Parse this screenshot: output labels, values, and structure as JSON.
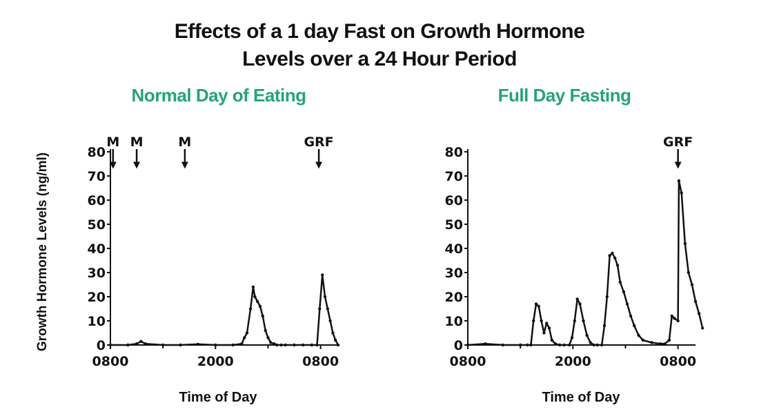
{
  "title_line1": "Effects of a 1 day Fast on Growth Hormone",
  "title_line2": "Levels over a 24 Hour Period",
  "colors": {
    "accent": "#23a47a",
    "ink": "#111111"
  },
  "chart_data": [
    {
      "type": "line",
      "title": "Normal Day of Eating",
      "xlabel": "Time of Day",
      "ylabel": "Growth Hormone Levels (ng/ml)",
      "ylim": [
        0,
        80
      ],
      "yticks": [
        0,
        10,
        20,
        30,
        40,
        50,
        60,
        70,
        80
      ],
      "xlim": [
        0,
        26
      ],
      "xticks": [
        {
          "x": 0,
          "label": "0800"
        },
        {
          "x": 12,
          "label": "2000"
        },
        {
          "x": 24,
          "label": "0800"
        }
      ],
      "markers": [
        {
          "label": "M",
          "x": 0.3,
          "y": 73
        },
        {
          "label": "M",
          "x": 3.0,
          "y": 73
        },
        {
          "label": "M",
          "x": 8.5,
          "y": 73
        },
        {
          "label": "GRF",
          "x": 23.8,
          "y": 73
        }
      ],
      "series": [
        {
          "x": [
            0,
            2,
            3,
            3.5,
            4,
            6,
            8,
            10,
            12,
            14,
            15,
            15.3,
            15.6,
            16.0,
            16.3,
            16.5,
            16.8,
            17.1,
            17.4,
            17.7,
            18.0,
            18.3,
            18.7,
            19.0,
            19.5,
            20,
            21,
            22,
            23,
            23.6,
            23.9,
            24.2,
            24.5,
            24.8,
            25.1,
            25.4,
            25.7,
            26
          ],
          "y": [
            0,
            0,
            0.5,
            1.5,
            0.5,
            0,
            0,
            0.3,
            0,
            0,
            0.5,
            3,
            5,
            15,
            24,
            20,
            18,
            16,
            12,
            6,
            3,
            1,
            0.5,
            0,
            0,
            0,
            0,
            0,
            0,
            0,
            15,
            29,
            20,
            15,
            10,
            5,
            2,
            0
          ]
        }
      ]
    },
    {
      "type": "line",
      "title": "Full Day Fasting",
      "xlabel": "Time of Day",
      "ylabel": "",
      "ylim": [
        0,
        80
      ],
      "yticks": [
        0,
        10,
        20,
        30,
        40,
        50,
        60,
        70,
        80
      ],
      "xlim": [
        0,
        26
      ],
      "xticks": [
        {
          "x": 0,
          "label": "0800"
        },
        {
          "x": 12,
          "label": "2000"
        },
        {
          "x": 24,
          "label": "0800"
        }
      ],
      "markers": [
        {
          "label": "GRF",
          "x": 24.0,
          "y": 73
        }
      ],
      "series": [
        {
          "x": [
            0,
            2,
            4,
            6,
            6.8,
            7.2,
            7.5,
            7.8,
            8.1,
            8.4,
            8.7,
            9.0,
            9.3,
            9.6,
            10.0,
            10.5,
            11,
            11.6,
            11.9,
            12.2,
            12.5,
            12.8,
            13.2,
            13.6,
            14.0,
            14.4,
            14.8,
            15.3,
            15.6,
            15.9,
            16.2,
            16.5,
            16.8,
            17.1,
            17.4,
            17.8,
            18.2,
            18.6,
            19.0,
            19.5,
            20,
            21,
            22,
            22.5,
            23,
            23.3,
            23.6,
            24.0,
            24.1,
            24.4,
            24.8,
            25.2,
            25.6,
            26.0,
            26.4,
            26.8
          ],
          "y": [
            0,
            0.5,
            0,
            0,
            0,
            0,
            10,
            17,
            16,
            10,
            5,
            9,
            7,
            2,
            0.5,
            0,
            0,
            0,
            3,
            10,
            19,
            17,
            10,
            4,
            1,
            0,
            0,
            0,
            8,
            20,
            37,
            38,
            36,
            33,
            26,
            22,
            17,
            12,
            8,
            4,
            2,
            1,
            0.5,
            0.5,
            2,
            12,
            11,
            10,
            68,
            63,
            42,
            30,
            25,
            18,
            13,
            7
          ]
        }
      ]
    }
  ]
}
